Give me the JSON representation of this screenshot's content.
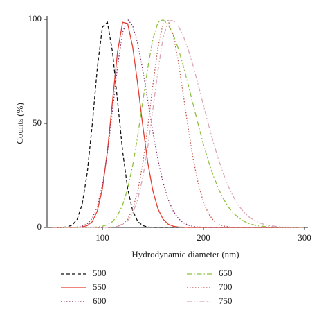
{
  "chart_data": {
    "type": "line",
    "x_label": "Hydrodynamic diameter (nm)",
    "y_label": "Counts (%)",
    "x": [
      50,
      55,
      60,
      65,
      70,
      75,
      80,
      85,
      90,
      95,
      100,
      105,
      110,
      115,
      120,
      125,
      130,
      135,
      140,
      145,
      150,
      155,
      160,
      165,
      170,
      175,
      180,
      185,
      190,
      195,
      200,
      205,
      210,
      215,
      220,
      225,
      230,
      235,
      240,
      245,
      250,
      255,
      260,
      265,
      270,
      275,
      280,
      285,
      290,
      295,
      300
    ],
    "xlim": [
      50,
      300
    ],
    "xticks": [
      100,
      200,
      300
    ],
    "ylim": [
      0,
      100
    ],
    "yticks": [
      0,
      50,
      100
    ],
    "legend": "bottom",
    "series": [
      {
        "name": "500",
        "color": "#111111",
        "dash": "dashed",
        "values": [
          0,
          0,
          0,
          0.3,
          1.1,
          3.9,
          11.2,
          26.2,
          49.7,
          76.8,
          96.3,
          98.6,
          84.4,
          60.7,
          36.7,
          18.6,
          8.0,
          2.9,
          0.9,
          0.2,
          0,
          0,
          0,
          0,
          0,
          0,
          0,
          0,
          0,
          0,
          0,
          0,
          0,
          0,
          0,
          0,
          0,
          0,
          0,
          0,
          0,
          0,
          0,
          0,
          0,
          0,
          0,
          0,
          0,
          0,
          0
        ]
      },
      {
        "name": "550",
        "color": "#e53b2c",
        "dash": "solid",
        "values": [
          0,
          0,
          0,
          0,
          0,
          0,
          0.2,
          0.9,
          2.8,
          8.0,
          18.6,
          36.7,
          60.7,
          84.4,
          98.6,
          98.0,
          86.7,
          68.7,
          48.7,
          30.9,
          17.5,
          8.9,
          4.0,
          1.6,
          0.6,
          0.2,
          0.1,
          0,
          0,
          0,
          0,
          0,
          0,
          0,
          0,
          0,
          0,
          0,
          0,
          0,
          0,
          0,
          0,
          0,
          0,
          0,
          0,
          0,
          0,
          0,
          0
        ]
      },
      {
        "name": "600",
        "color": "#8b2f6b",
        "dash": "dotted",
        "values": [
          0,
          0,
          0,
          0,
          0,
          0.2,
          0.6,
          1.7,
          4.4,
          10.1,
          20.3,
          36.0,
          56.3,
          77.5,
          93.8,
          100,
          96.9,
          88.2,
          75.5,
          60.7,
          45.8,
          32.5,
          21.6,
          13.5,
          8.0,
          4.4,
          2.3,
          1.1,
          0.5,
          0.2,
          0.1,
          0,
          0,
          0,
          0,
          0,
          0,
          0,
          0,
          0,
          0,
          0,
          0,
          0,
          0,
          0,
          0,
          0,
          0,
          0,
          0
        ]
      },
      {
        "name": "650",
        "color": "#8fc03f",
        "dash": "dashdot",
        "values": [
          0,
          0,
          0,
          0,
          0,
          0,
          0,
          0,
          0.1,
          0.2,
          0.6,
          1.3,
          2.8,
          5.8,
          10.8,
          18.6,
          29.8,
          44.2,
          60.7,
          77.0,
          90.6,
          98.6,
          99.8,
          97.5,
          92.8,
          86.1,
          77.7,
          68.4,
          58.7,
          49.1,
          39.9,
          31.7,
          24.5,
          18.4,
          13.5,
          9.6,
          6.7,
          4.6,
          3.0,
          1.9,
          1.2,
          0.7,
          0.5,
          0.3,
          0.2,
          0.1,
          0,
          0,
          0,
          0,
          0
        ]
      },
      {
        "name": "700",
        "color": "#c4574b",
        "dash": "dotted",
        "values": [
          0,
          0,
          0,
          0,
          0,
          0,
          0,
          0,
          0,
          0,
          0,
          0.1,
          0.2,
          0.6,
          1.6,
          4.0,
          8.9,
          17.5,
          30.9,
          48.7,
          68.7,
          86.7,
          98.0,
          99.4,
          92.7,
          80.1,
          64.0,
          47.4,
          32.5,
          20.6,
          12.1,
          6.6,
          3.3,
          1.5,
          0.7,
          0.3,
          0.1,
          0,
          0,
          0,
          0,
          0,
          0,
          0,
          0,
          0,
          0,
          0,
          0,
          0,
          0
        ]
      },
      {
        "name": "750",
        "color": "#d8a6b6",
        "dash": "dashdotdot",
        "values": [
          0,
          0,
          0,
          0,
          0,
          0,
          0,
          0,
          0,
          0,
          0,
          0.1,
          0.2,
          0.5,
          1.3,
          3.2,
          6.9,
          13.5,
          24.1,
          38.9,
          56.9,
          75.5,
          90.9,
          99.2,
          99.6,
          96.9,
          92.1,
          85.4,
          77.3,
          68.2,
          58.7,
          49.4,
          40.5,
          32.5,
          25.4,
          19.4,
          14.4,
          10.4,
          7.4,
          5.1,
          3.5,
          2.3,
          1.5,
          0.9,
          0.6,
          0.3,
          0.2,
          0.1,
          0,
          0,
          0
        ]
      }
    ]
  }
}
